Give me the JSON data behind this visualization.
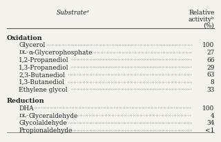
{
  "header_substrate": "Substrateᵃ",
  "header_activity_line1": "Relative",
  "header_activity_line2": "activityᵇ",
  "header_activity_line3": "(%)",
  "sections": [
    {
      "section_title": "Oxidation",
      "rows": [
        {
          "substrate": "Glycerol",
          "activity": "100"
        },
        {
          "substrate": "DL-α-Glycerophosphate",
          "activity": "27"
        },
        {
          "substrate": "1,2-Propanediol",
          "activity": "66"
        },
        {
          "substrate": "1,3-Propanediol",
          "activity": "29"
        },
        {
          "substrate": "2,3-Butanediol",
          "activity": "63"
        },
        {
          "substrate": "1,3-Butanediol",
          "activity": "8"
        },
        {
          "substrate": "Ethylene glycol",
          "activity": "33"
        }
      ]
    },
    {
      "section_title": "Reduction",
      "rows": [
        {
          "substrate": "DHA",
          "activity": "100"
        },
        {
          "substrate": "DL-Glyceraldehyde",
          "activity": "4"
        },
        {
          "substrate": "Glycolaldehyde",
          "activity": "34"
        },
        {
          "substrate": "Propionaldehyde",
          "activity": "<1"
        }
      ]
    }
  ],
  "bg_color": "#f5f3ee",
  "text_color": "#222222"
}
